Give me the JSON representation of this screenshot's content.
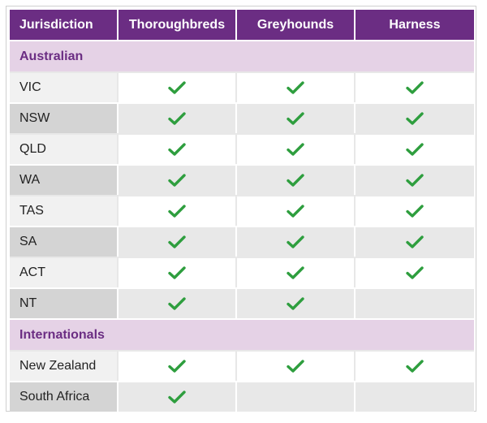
{
  "columns": [
    "Jurisdiction",
    "Thoroughbreds",
    "Greyhounds",
    "Harness"
  ],
  "accent_color": "#6b2d83",
  "section_color": "#e5d2e6",
  "check_color": "#2e9e3e",
  "check_icon": "checkmark-icon",
  "sections": [
    {
      "name": "Australian",
      "rows": [
        {
          "name": "VIC",
          "thoroughbreds": true,
          "greyhounds": true,
          "harness": true
        },
        {
          "name": "NSW",
          "thoroughbreds": true,
          "greyhounds": true,
          "harness": true
        },
        {
          "name": "QLD",
          "thoroughbreds": true,
          "greyhounds": true,
          "harness": true
        },
        {
          "name": "WA",
          "thoroughbreds": true,
          "greyhounds": true,
          "harness": true
        },
        {
          "name": "TAS",
          "thoroughbreds": true,
          "greyhounds": true,
          "harness": true
        },
        {
          "name": "SA",
          "thoroughbreds": true,
          "greyhounds": true,
          "harness": true
        },
        {
          "name": "ACT",
          "thoroughbreds": true,
          "greyhounds": true,
          "harness": true
        },
        {
          "name": "NT",
          "thoroughbreds": true,
          "greyhounds": true,
          "harness": false
        }
      ]
    },
    {
      "name": "Internationals",
      "rows": [
        {
          "name": "New Zealand",
          "thoroughbreds": true,
          "greyhounds": true,
          "harness": true
        },
        {
          "name": "South Africa",
          "thoroughbreds": true,
          "greyhounds": false,
          "harness": false
        }
      ]
    }
  ]
}
